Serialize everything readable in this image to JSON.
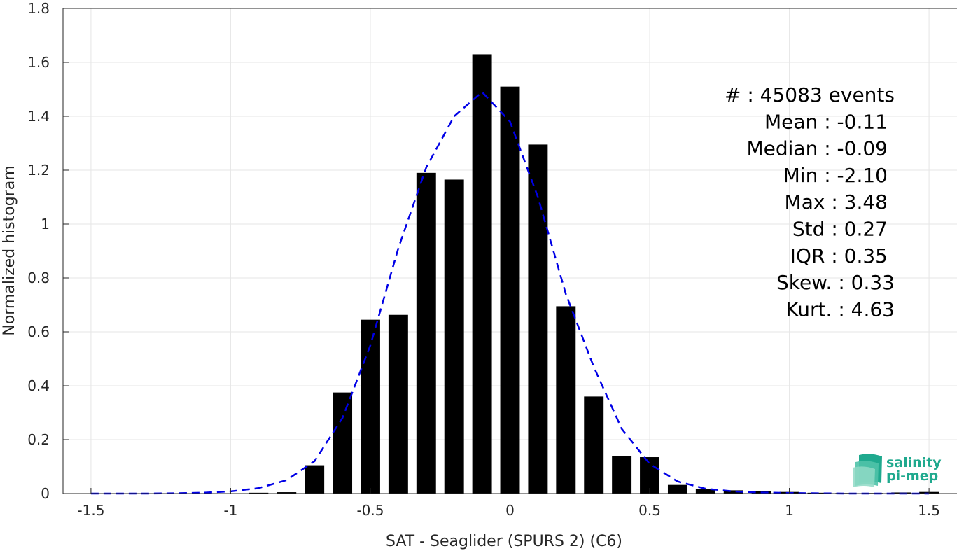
{
  "chart_data": {
    "type": "bar",
    "xlabel": "SAT - Seaglider (SPURS 2) (C6)",
    "ylabel": "Normalized histogram",
    "xlim": [
      -1.6,
      1.6
    ],
    "ylim": [
      0,
      1.8
    ],
    "xticks": [
      "-1.5",
      "-1",
      "-0.5",
      "0",
      "0.5",
      "1",
      "1.5"
    ],
    "xtick_values": [
      -1.5,
      -1,
      -0.5,
      0,
      0.5,
      1,
      1.5
    ],
    "yticks": [
      "0",
      "0.2",
      "0.4",
      "0.6",
      "0.8",
      "1",
      "1.2",
      "1.4",
      "1.6",
      "1.8"
    ],
    "ytick_values": [
      0,
      0.2,
      0.4,
      0.6,
      0.8,
      1.0,
      1.2,
      1.4,
      1.6,
      1.8
    ],
    "grid": true,
    "bar_width": 0.07,
    "bars": {
      "x": [
        -1.5,
        -1.4,
        -1.3,
        -1.2,
        -1.1,
        -1.0,
        -0.9,
        -0.8,
        -0.7,
        -0.6,
        -0.5,
        -0.4,
        -0.3,
        -0.2,
        -0.1,
        0.0,
        0.1,
        0.2,
        0.3,
        0.4,
        0.5,
        0.6,
        0.7,
        0.8,
        0.9,
        1.0,
        1.1,
        1.2,
        1.3,
        1.4,
        1.5
      ],
      "values": [
        0.0,
        0.0,
        0.0,
        0.0,
        0.0,
        0.001,
        0.003,
        0.005,
        0.105,
        0.375,
        0.645,
        0.663,
        1.19,
        1.165,
        1.63,
        1.51,
        1.295,
        0.695,
        0.36,
        0.138,
        0.135,
        0.032,
        0.018,
        0.012,
        0.008,
        0.006,
        0.003,
        0.002,
        0.002,
        0.004,
        0.006
      ],
      "color": "#000000"
    },
    "fit_line": {
      "style": "dashed",
      "color": "#0000e6",
      "x": [
        -1.5,
        -1.4,
        -1.3,
        -1.2,
        -1.1,
        -1.0,
        -0.9,
        -0.8,
        -0.7,
        -0.6,
        -0.5,
        -0.4,
        -0.3,
        -0.2,
        -0.1,
        0.0,
        0.1,
        0.2,
        0.3,
        0.4,
        0.5,
        0.6,
        0.7,
        0.8,
        0.9,
        1.0,
        1.1,
        1.2,
        1.3,
        1.4,
        1.5
      ],
      "y": [
        0.0,
        0.0,
        0.0,
        0.001,
        0.003,
        0.008,
        0.02,
        0.05,
        0.12,
        0.28,
        0.55,
        0.91,
        1.21,
        1.4,
        1.49,
        1.38,
        1.1,
        0.74,
        0.47,
        0.24,
        0.11,
        0.045,
        0.018,
        0.008,
        0.004,
        0.002,
        0.001,
        0.0,
        0.0,
        0.0,
        0.0
      ]
    },
    "stats": [
      {
        "label": "#  : 45083 events"
      },
      {
        "label": "Mean : -0.11"
      },
      {
        "label": "Median : -0.09"
      },
      {
        "label": "Min : -2.10"
      },
      {
        "label": "Max : 3.48"
      },
      {
        "label": "Std : 0.27"
      },
      {
        "label": "IQR : 0.35"
      },
      {
        "label": "Skew. : 0.33"
      },
      {
        "label": "Kurt. : 4.63"
      }
    ],
    "logo": {
      "line1": "salinity",
      "line2": "pi-mep"
    }
  }
}
